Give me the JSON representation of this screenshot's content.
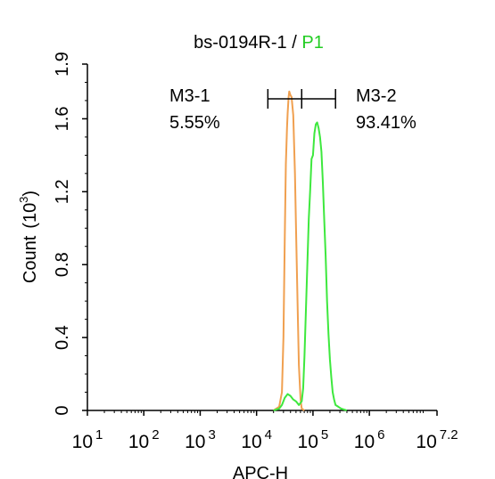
{
  "chart_data": {
    "type": "line",
    "title": "bs-0194R-1",
    "title_separator": " / ",
    "title_gate": "P1",
    "xlabel": "APC-H",
    "ylabel": "Count",
    "ylabel_unit_base": "(10",
    "ylabel_unit_exp": "3",
    "ylabel_unit_close": ")",
    "x_scale": "log10",
    "xlim": [
      10,
      15848932
    ],
    "ylim": [
      0,
      1.9
    ],
    "x_ticks": [
      {
        "base": "10",
        "exp": "1",
        "value": 10
      },
      {
        "base": "10",
        "exp": "2",
        "value": 100
      },
      {
        "base": "10",
        "exp": "3",
        "value": 1000
      },
      {
        "base": "10",
        "exp": "4",
        "value": 10000
      },
      {
        "base": "10",
        "exp": "5",
        "value": 100000
      },
      {
        "base": "10",
        "exp": "6",
        "value": 1000000
      },
      {
        "base": "10",
        "exp": "7.2",
        "value": 15848932
      }
    ],
    "y_ticks": [
      {
        "label": "0",
        "value": 0
      },
      {
        "label": "0.4",
        "value": 0.4
      },
      {
        "label": "0.8",
        "value": 0.8
      },
      {
        "label": "1.2",
        "value": 1.2
      },
      {
        "label": "1.6",
        "value": 1.6
      },
      {
        "label": "1.9",
        "value": 1.9
      }
    ],
    "gates": [
      {
        "name": "M3-1",
        "percent": "5.55%",
        "x_start": 15849,
        "x_end": 63096,
        "y": 1.73
      },
      {
        "name": "M3-2",
        "percent": "93.41%",
        "x_start": 63096,
        "x_end": 251189,
        "y": 1.73
      }
    ],
    "series": [
      {
        "color": "#f0a050",
        "x": [
          20000,
          25119,
          28184,
          30000,
          31623,
          33000,
          34674,
          35481,
          37000,
          38019,
          39811,
          41687,
          44668,
          47863,
          50119,
          53703,
          56234,
          60256,
          63096,
          70795
        ],
        "y": [
          0,
          0.02,
          0.1,
          0.4,
          0.95,
          1.35,
          1.55,
          1.63,
          1.72,
          1.75,
          1.73,
          1.72,
          1.62,
          1.3,
          1.0,
          0.55,
          0.25,
          0.06,
          0.01,
          0
        ]
      },
      {
        "color": "#3ee83e",
        "x": [
          20000,
          25119,
          28184,
          31623,
          35481,
          39811,
          44668,
          50119,
          56234,
          63096,
          67000,
          70795,
          75000,
          79433,
          84140,
          89125,
          94406,
          100000,
          105925,
          112202,
          118850,
          125893,
          133352,
          141254,
          149624,
          158489,
          167880,
          177828,
          188365,
          199526,
          211349,
          223872,
          237137,
          251189,
          281838,
          316228,
          354813,
          398107
        ],
        "y": [
          0,
          0.01,
          0.03,
          0.07,
          0.09,
          0.08,
          0.06,
          0.05,
          0.03,
          0.05,
          0.12,
          0.3,
          0.55,
          0.8,
          1.05,
          1.2,
          1.38,
          1.4,
          1.52,
          1.57,
          1.58,
          1.55,
          1.5,
          1.42,
          1.25,
          1.05,
          0.85,
          0.6,
          0.42,
          0.28,
          0.18,
          0.1,
          0.06,
          0.03,
          0.02,
          0.01,
          0.005,
          0
        ]
      }
    ]
  },
  "colors": {
    "axis": "#000000",
    "gate_title": "#22cc22"
  }
}
